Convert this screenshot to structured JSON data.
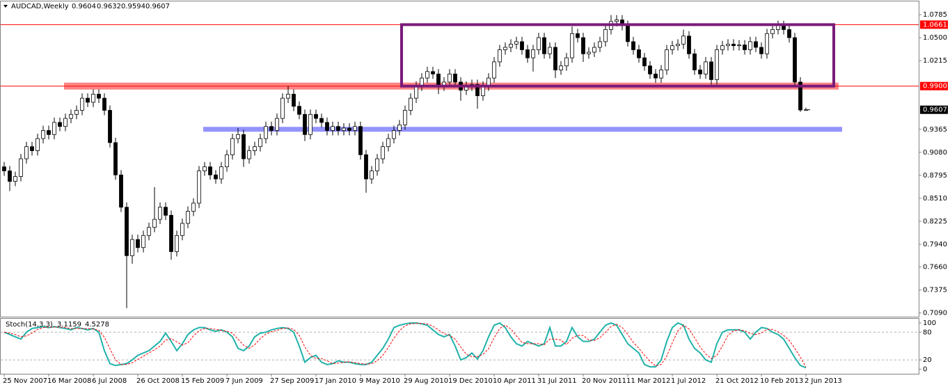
{
  "chart_data": [
    {
      "type": "candlestick",
      "title": "AUDCAD,Weekly",
      "categories": [
        "25 Nov 2007",
        null,
        null,
        null,
        null,
        null,
        null,
        null,
        "16 Mar 2008",
        null,
        null,
        null,
        null,
        null,
        null,
        null,
        "6 Jul 2008",
        null,
        null,
        null,
        null,
        null,
        null,
        null,
        "26 Oct 2008",
        null,
        null,
        null,
        null,
        null,
        null,
        null,
        "15 Feb 2009",
        null,
        null,
        null,
        null,
        null,
        null,
        null,
        "7 Jun 2009",
        null,
        null,
        null,
        null,
        null,
        null,
        null,
        "27 Sep 2009",
        null,
        null,
        null,
        null,
        null,
        null,
        null,
        "17 Jan 2010",
        null,
        null,
        null,
        null,
        null,
        null,
        null,
        "9 May 2010",
        null,
        null,
        null,
        null,
        null,
        null,
        null,
        "29 Aug 2010",
        null,
        null,
        null,
        null,
        null,
        null,
        null,
        "19 Dec 2010",
        null,
        null,
        null,
        null,
        null,
        null,
        null,
        "10 Apr 2011",
        null,
        null,
        null,
        null,
        null,
        null,
        null,
        "31 Jul 2011",
        null,
        null,
        null,
        null,
        null,
        null,
        null,
        "20 Nov 2011",
        null,
        null,
        null,
        null,
        null,
        null,
        null,
        "11 Mar 2012",
        null,
        null,
        null,
        null,
        null,
        null,
        null,
        "1 Jul 2012",
        null,
        null,
        null,
        null,
        null,
        null,
        null,
        "21 Oct 2012",
        null,
        null,
        null,
        null,
        null,
        null,
        null,
        "10 Feb 2013",
        null,
        null,
        null,
        null,
        null,
        null,
        null,
        "2 Jun 2013"
      ],
      "open": [
        0.89,
        0.885,
        0.872,
        0.878,
        0.9,
        0.915,
        0.91,
        0.925,
        0.935,
        0.93,
        0.945,
        0.94,
        0.95,
        0.955,
        0.96,
        0.975,
        0.97,
        0.98,
        0.975,
        0.96,
        0.92,
        0.88,
        0.84,
        0.78,
        0.8,
        0.79,
        0.805,
        0.815,
        0.825,
        0.84,
        0.83,
        0.785,
        0.805,
        0.82,
        0.835,
        0.845,
        0.885,
        0.89,
        0.88,
        0.875,
        0.89,
        0.905,
        0.925,
        0.93,
        0.9,
        0.91,
        0.915,
        0.925,
        0.94,
        0.935,
        0.95,
        0.975,
        0.98,
        0.965,
        0.955,
        0.93,
        0.955,
        0.95,
        0.945,
        0.935,
        0.94,
        0.935,
        0.938,
        0.935,
        0.94,
        0.905,
        0.875,
        0.885,
        0.9,
        0.915,
        0.925,
        0.935,
        0.942,
        0.96,
        0.975,
        0.99,
        1.0,
        1.008,
        1.005,
        0.99,
        0.995,
        1.005,
        0.995,
        0.985,
        0.99,
        0.992,
        0.978,
        0.99,
        1.0,
        1.02,
        1.035,
        1.038,
        1.042,
        1.045,
        1.035,
        1.025,
        1.035,
        1.05,
        1.03,
        1.038,
        1.01,
        1.015,
        1.025,
        1.055,
        1.05,
        1.03,
        1.032,
        1.038,
        1.045,
        1.06,
        1.07,
        1.072,
        1.065,
        1.045,
        1.035,
        1.025,
        1.015,
        1.005,
        1.0,
        1.01,
        1.035,
        1.04,
        1.042,
        1.052,
        1.03,
        1.01,
        1.005,
        1.02,
        0.998,
        1.035,
        1.04,
        1.042,
        1.04,
        1.041,
        1.035,
        1.045,
        1.038,
        1.03,
        1.055,
        1.06,
        1.065,
        1.06,
        1.05,
        0.995,
        0.9604
      ],
      "high": [
        0.896,
        0.891,
        0.884,
        0.906,
        0.921,
        0.921,
        0.931,
        0.941,
        0.941,
        0.951,
        0.951,
        0.956,
        0.961,
        0.966,
        0.981,
        0.981,
        0.986,
        0.986,
        0.981,
        0.966,
        0.926,
        0.886,
        0.846,
        0.806,
        0.806,
        0.811,
        0.821,
        0.865,
        0.846,
        0.846,
        0.836,
        0.811,
        0.826,
        0.841,
        0.851,
        0.891,
        0.896,
        0.896,
        0.886,
        0.896,
        0.911,
        0.931,
        0.938,
        0.936,
        0.916,
        0.921,
        0.931,
        0.946,
        0.946,
        0.956,
        0.981,
        0.99,
        0.986,
        0.971,
        0.961,
        0.961,
        0.961,
        0.956,
        0.951,
        0.946,
        0.946,
        0.944,
        0.944,
        0.946,
        0.946,
        0.911,
        0.891,
        0.906,
        0.921,
        0.931,
        0.941,
        0.948,
        0.966,
        0.981,
        0.996,
        1.006,
        1.014,
        1.014,
        1.011,
        1.001,
        1.011,
        1.011,
        1.001,
        0.996,
        0.998,
        0.998,
        0.996,
        1.006,
        1.026,
        1.041,
        1.044,
        1.048,
        1.051,
        1.051,
        1.041,
        1.041,
        1.056,
        1.056,
        1.044,
        1.044,
        1.021,
        1.031,
        1.064,
        1.061,
        1.056,
        1.038,
        1.044,
        1.051,
        1.066,
        1.078,
        1.078,
        1.078,
        1.071,
        1.051,
        1.041,
        1.031,
        1.021,
        1.011,
        1.016,
        1.041,
        1.046,
        1.048,
        1.06,
        1.058,
        1.036,
        1.016,
        1.026,
        1.026,
        1.041,
        1.046,
        1.048,
        1.048,
        1.047,
        1.047,
        1.051,
        1.051,
        1.044,
        1.061,
        1.066,
        1.071,
        1.071,
        1.066,
        1.056,
        1.001,
        0.9632
      ],
      "low": [
        0.879,
        0.86,
        0.866,
        0.872,
        0.894,
        0.904,
        0.904,
        0.919,
        0.924,
        0.924,
        0.934,
        0.934,
        0.944,
        0.949,
        0.954,
        0.964,
        0.964,
        0.969,
        0.954,
        0.914,
        0.874,
        0.834,
        0.715,
        0.77,
        0.784,
        0.784,
        0.799,
        0.809,
        0.819,
        0.824,
        0.775,
        0.779,
        0.799,
        0.814,
        0.829,
        0.839,
        0.879,
        0.874,
        0.869,
        0.869,
        0.884,
        0.899,
        0.919,
        0.89,
        0.894,
        0.904,
        0.909,
        0.919,
        0.929,
        0.929,
        0.944,
        0.969,
        0.959,
        0.949,
        0.922,
        0.924,
        0.944,
        0.939,
        0.929,
        0.929,
        0.929,
        0.929,
        0.929,
        0.929,
        0.899,
        0.858,
        0.869,
        0.879,
        0.894,
        0.909,
        0.919,
        0.929,
        0.936,
        0.954,
        0.969,
        0.984,
        0.994,
        0.999,
        0.98,
        0.984,
        0.989,
        0.989,
        0.972,
        0.979,
        0.984,
        0.962,
        0.972,
        0.984,
        0.994,
        1.014,
        1.029,
        1.032,
        1.036,
        1.029,
        1.019,
        1.008,
        1.029,
        1.024,
        1.024,
        1.0,
        1.004,
        1.009,
        1.019,
        1.044,
        1.02,
        1.024,
        1.026,
        1.032,
        1.039,
        1.054,
        1.064,
        1.059,
        1.039,
        1.029,
        1.019,
        1.009,
        0.999,
        0.994,
        0.994,
        1.004,
        1.029,
        1.034,
        1.036,
        1.024,
        1.004,
        0.999,
        0.999,
        0.992,
        0.992,
        1.029,
        1.034,
        1.034,
        1.034,
        1.029,
        1.029,
        1.032,
        1.024,
        1.024,
        1.049,
        1.054,
        1.054,
        1.044,
        0.989,
        0.958,
        0.9594
      ],
      "close": [
        0.885,
        0.872,
        0.878,
        0.9,
        0.915,
        0.91,
        0.925,
        0.935,
        0.93,
        0.945,
        0.94,
        0.95,
        0.955,
        0.96,
        0.975,
        0.97,
        0.98,
        0.975,
        0.96,
        0.92,
        0.88,
        0.84,
        0.78,
        0.8,
        0.79,
        0.805,
        0.815,
        0.825,
        0.84,
        0.83,
        0.785,
        0.805,
        0.82,
        0.835,
        0.845,
        0.885,
        0.89,
        0.88,
        0.875,
        0.89,
        0.905,
        0.925,
        0.93,
        0.9,
        0.91,
        0.915,
        0.925,
        0.94,
        0.935,
        0.95,
        0.975,
        0.98,
        0.965,
        0.955,
        0.93,
        0.955,
        0.95,
        0.945,
        0.935,
        0.94,
        0.935,
        0.938,
        0.935,
        0.94,
        0.905,
        0.875,
        0.885,
        0.9,
        0.915,
        0.925,
        0.935,
        0.942,
        0.96,
        0.975,
        0.99,
        1.0,
        1.008,
        1.005,
        0.99,
        0.995,
        1.005,
        0.995,
        0.985,
        0.99,
        0.992,
        0.978,
        0.99,
        1.0,
        1.02,
        1.035,
        1.038,
        1.042,
        1.045,
        1.035,
        1.025,
        1.035,
        1.05,
        1.03,
        1.038,
        1.01,
        1.015,
        1.025,
        1.055,
        1.05,
        1.03,
        1.032,
        1.038,
        1.045,
        1.06,
        1.07,
        1.072,
        1.065,
        1.045,
        1.035,
        1.025,
        1.015,
        1.005,
        1.0,
        1.01,
        1.035,
        1.04,
        1.042,
        1.052,
        1.03,
        1.01,
        1.005,
        1.02,
        0.998,
        1.035,
        1.04,
        1.042,
        1.04,
        1.041,
        1.035,
        1.045,
        1.038,
        1.03,
        1.055,
        1.06,
        1.065,
        1.06,
        1.05,
        0.995,
        0.9604,
        0.9607
      ],
      "up_color": "#ffffff",
      "down_color": "#000000",
      "wick_color": "#000000",
      "ylim": [
        0.7044,
        1.0949
      ],
      "yticks": [
        1.0785,
        {
          "value": 1.05,
          "label": "1.0500"
        },
        1.0215,
        0.9365,
        {
          "value": 0.908,
          "label": "0.9080"
        },
        0.8795,
        {
          "value": 0.851,
          "label": "0.8510"
        },
        0.8225,
        {
          "value": 0.794,
          "label": "0.7940"
        },
        {
          "value": 0.766,
          "label": "0.7660"
        },
        0.7375,
        {
          "value": 0.709,
          "label": "0.7090"
        }
      ],
      "hlines": [
        {
          "value": 1.0661,
          "color": "#ff0000"
        },
        {
          "value": 0.99,
          "label": "0.9900",
          "color": "#ff0000"
        }
      ],
      "bands": [
        {
          "value": 0.99,
          "color": "#ff7070"
        },
        {
          "value": 0.9365,
          "color": "#8080ff"
        }
      ],
      "box": {
        "top": 1.0661,
        "bottom": 0.99,
        "color": "#7a1a7a"
      }
    },
    {
      "type": "line",
      "title": "Stoch(14,3,3)",
      "series": [
        {
          "color": "#20b2aa",
          "values": [
            80,
            75,
            70,
            65,
            80,
            88,
            90,
            92,
            90,
            92,
            90,
            88,
            85,
            90,
            88,
            85,
            88,
            80,
            40,
            12,
            8,
            10,
            12,
            20,
            30,
            35,
            40,
            50,
            60,
            78,
            60,
            40,
            55,
            75,
            85,
            90,
            90,
            85,
            82,
            85,
            80,
            70,
            45,
            40,
            50,
            70,
            78,
            80,
            85,
            88,
            90,
            88,
            80,
            50,
            15,
            25,
            30,
            15,
            10,
            12,
            18,
            15,
            15,
            12,
            10,
            10,
            15,
            30,
            45,
            65,
            90,
            95,
            98,
            100,
            100,
            98,
            95,
            85,
            75,
            70,
            75,
            50,
            20,
            25,
            35,
            22,
            40,
            70,
            95,
            100,
            90,
            70,
            55,
            50,
            60,
            55,
            50,
            55,
            90,
            50,
            50,
            60,
            90,
            70,
            60,
            60,
            65,
            80,
            95,
            100,
            95,
            75,
            55,
            45,
            35,
            10,
            5,
            5,
            20,
            60,
            90,
            100,
            95,
            65,
            45,
            35,
            20,
            15,
            55,
            80,
            85,
            85,
            85,
            80,
            65,
            80,
            90,
            88,
            80,
            75,
            65,
            45,
            25,
            8,
            3.1159
          ]
        },
        {
          "color": "#ff0000",
          "dash": true,
          "values": [
            80,
            78,
            75,
            70,
            72,
            78,
            86,
            90,
            91,
            91,
            91,
            90,
            88,
            88,
            88,
            88,
            87,
            84,
            69,
            44,
            20,
            10,
            10,
            14,
            21,
            28,
            35,
            42,
            50,
            63,
            66,
            59,
            52,
            57,
            72,
            83,
            88,
            88,
            86,
            84,
            82,
            78,
            65,
            52,
            45,
            53,
            66,
            76,
            81,
            84,
            88,
            89,
            86,
            73,
            48,
            30,
            23,
            23,
            18,
            12,
            13,
            15,
            16,
            14,
            12,
            11,
            12,
            18,
            30,
            47,
            67,
            83,
            94,
            98,
            99,
            99,
            98,
            93,
            85,
            77,
            73,
            65,
            48,
            32,
            27,
            27,
            32,
            44,
            68,
            88,
            95,
            87,
            72,
            58,
            55,
            55,
            55,
            53,
            65,
            65,
            63,
            53,
            67,
            73,
            73,
            63,
            62,
            68,
            80,
            92,
            97,
            90,
            75,
            58,
            45,
            30,
            17,
            7,
            10,
            28,
            57,
            83,
            95,
            87,
            68,
            48,
            33,
            23,
            30,
            50,
            73,
            83,
            85,
            83,
            77,
            75,
            78,
            86,
            86,
            81,
            73,
            62,
            45,
            26,
            4.5278
          ]
        }
      ],
      "ylim": [
        -10,
        109
      ],
      "yticks": [
        100,
        80,
        20,
        0
      ]
    }
  ]
}
